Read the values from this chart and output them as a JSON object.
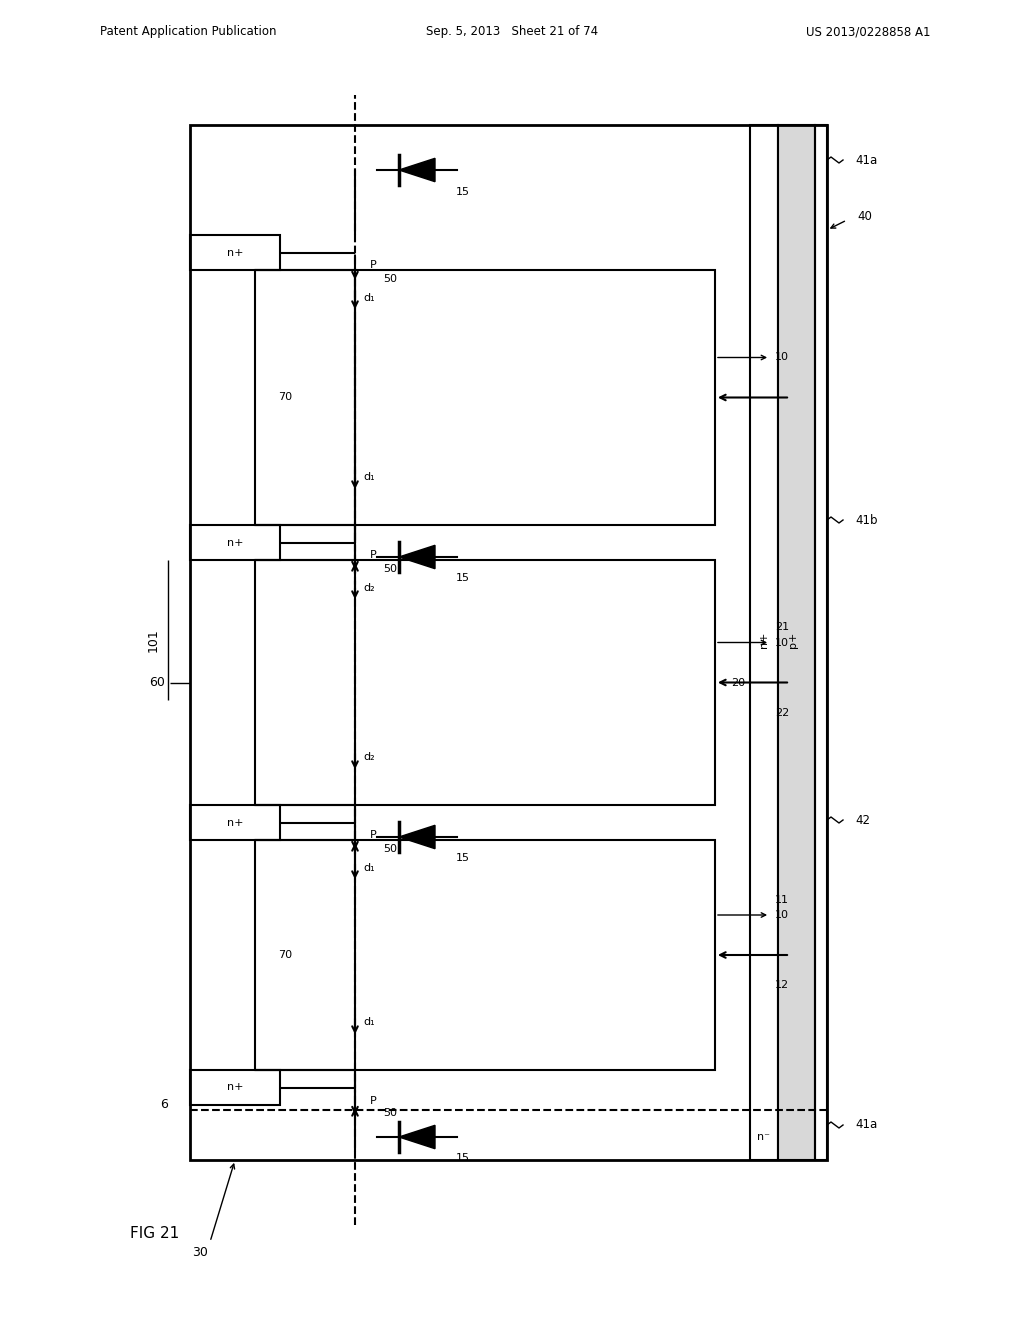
{
  "title_left": "Patent Application Publication",
  "title_mid": "Sep. 5, 2013   Sheet 21 of 74",
  "title_right": "US 2013/0228858 A1",
  "fig_label": "FIG 21",
  "background": "#ffffff",
  "line_color": "#000000"
}
